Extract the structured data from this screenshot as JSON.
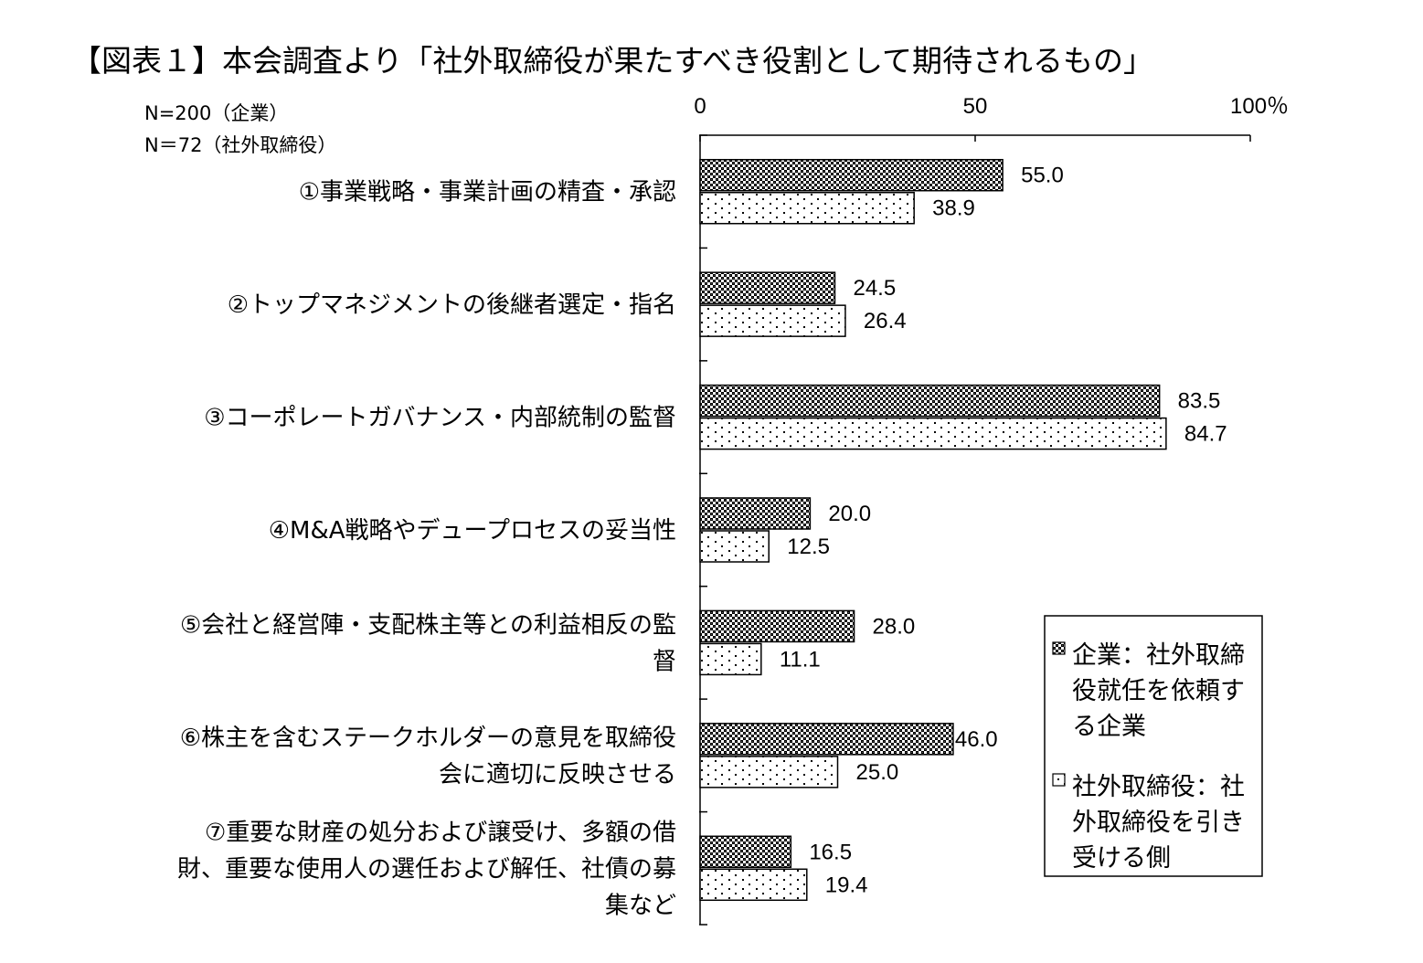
{
  "title": "【図表１】本会調査より「社外取締役が果たすべき役割として期待されるもの」",
  "notes": [
    "N=200（企業）",
    "N＝72（社外取締役）"
  ],
  "chart_data": {
    "type": "bar",
    "orientation": "horizontal",
    "axis_max": 100,
    "ticks": [
      {
        "value": 0,
        "label": "0"
      },
      {
        "value": 50,
        "label": "50"
      },
      {
        "value": 100,
        "label": "100％"
      }
    ],
    "categories": [
      [
        "①事業戦略・事業計画の精査・承認"
      ],
      [
        "②トップマネジメントの後継者選定・指名"
      ],
      [
        "③コーポレートガバナンス・内部統制の監督"
      ],
      [
        "④M&A戦略やデュープロセスの妥当性"
      ],
      [
        "⑤会社と経営陣・支配株主等との利益相反の監",
        "督"
      ],
      [
        "⑥株主を含むステークホルダーの意見を取締役",
        "会に適切に反映させる"
      ],
      [
        "⑦重要な財産の処分および譲受け、多額の借",
        "財、重要な使用人の選任および解任、社債の募",
        "集など"
      ]
    ],
    "series": [
      {
        "name": "企業：社外取締役就任を依頼する企業",
        "legend_lines": [
          "企業：社外取締",
          "役就任を依頼す",
          "る企業"
        ],
        "pattern": "crosshatch",
        "values": [
          55.0,
          24.5,
          83.5,
          20.0,
          28.0,
          46.0,
          16.5
        ],
        "labels": [
          "55.0",
          "24.5",
          "83.5",
          "20.0",
          "28.0",
          "46.0",
          "16.5"
        ]
      },
      {
        "name": "社外取締役：社外取締役を引き受ける側",
        "legend_lines": [
          "社外取締役：社",
          "外取締役を引き",
          "受ける側"
        ],
        "pattern": "dots",
        "values": [
          38.9,
          26.4,
          84.7,
          12.5,
          11.1,
          25.0,
          19.4
        ],
        "labels": [
          "38.9",
          "26.4",
          "84.7",
          "12.5",
          "11.1",
          "25.0",
          "19.4"
        ]
      }
    ],
    "legend_position": "bottom-right",
    "grid": false
  }
}
